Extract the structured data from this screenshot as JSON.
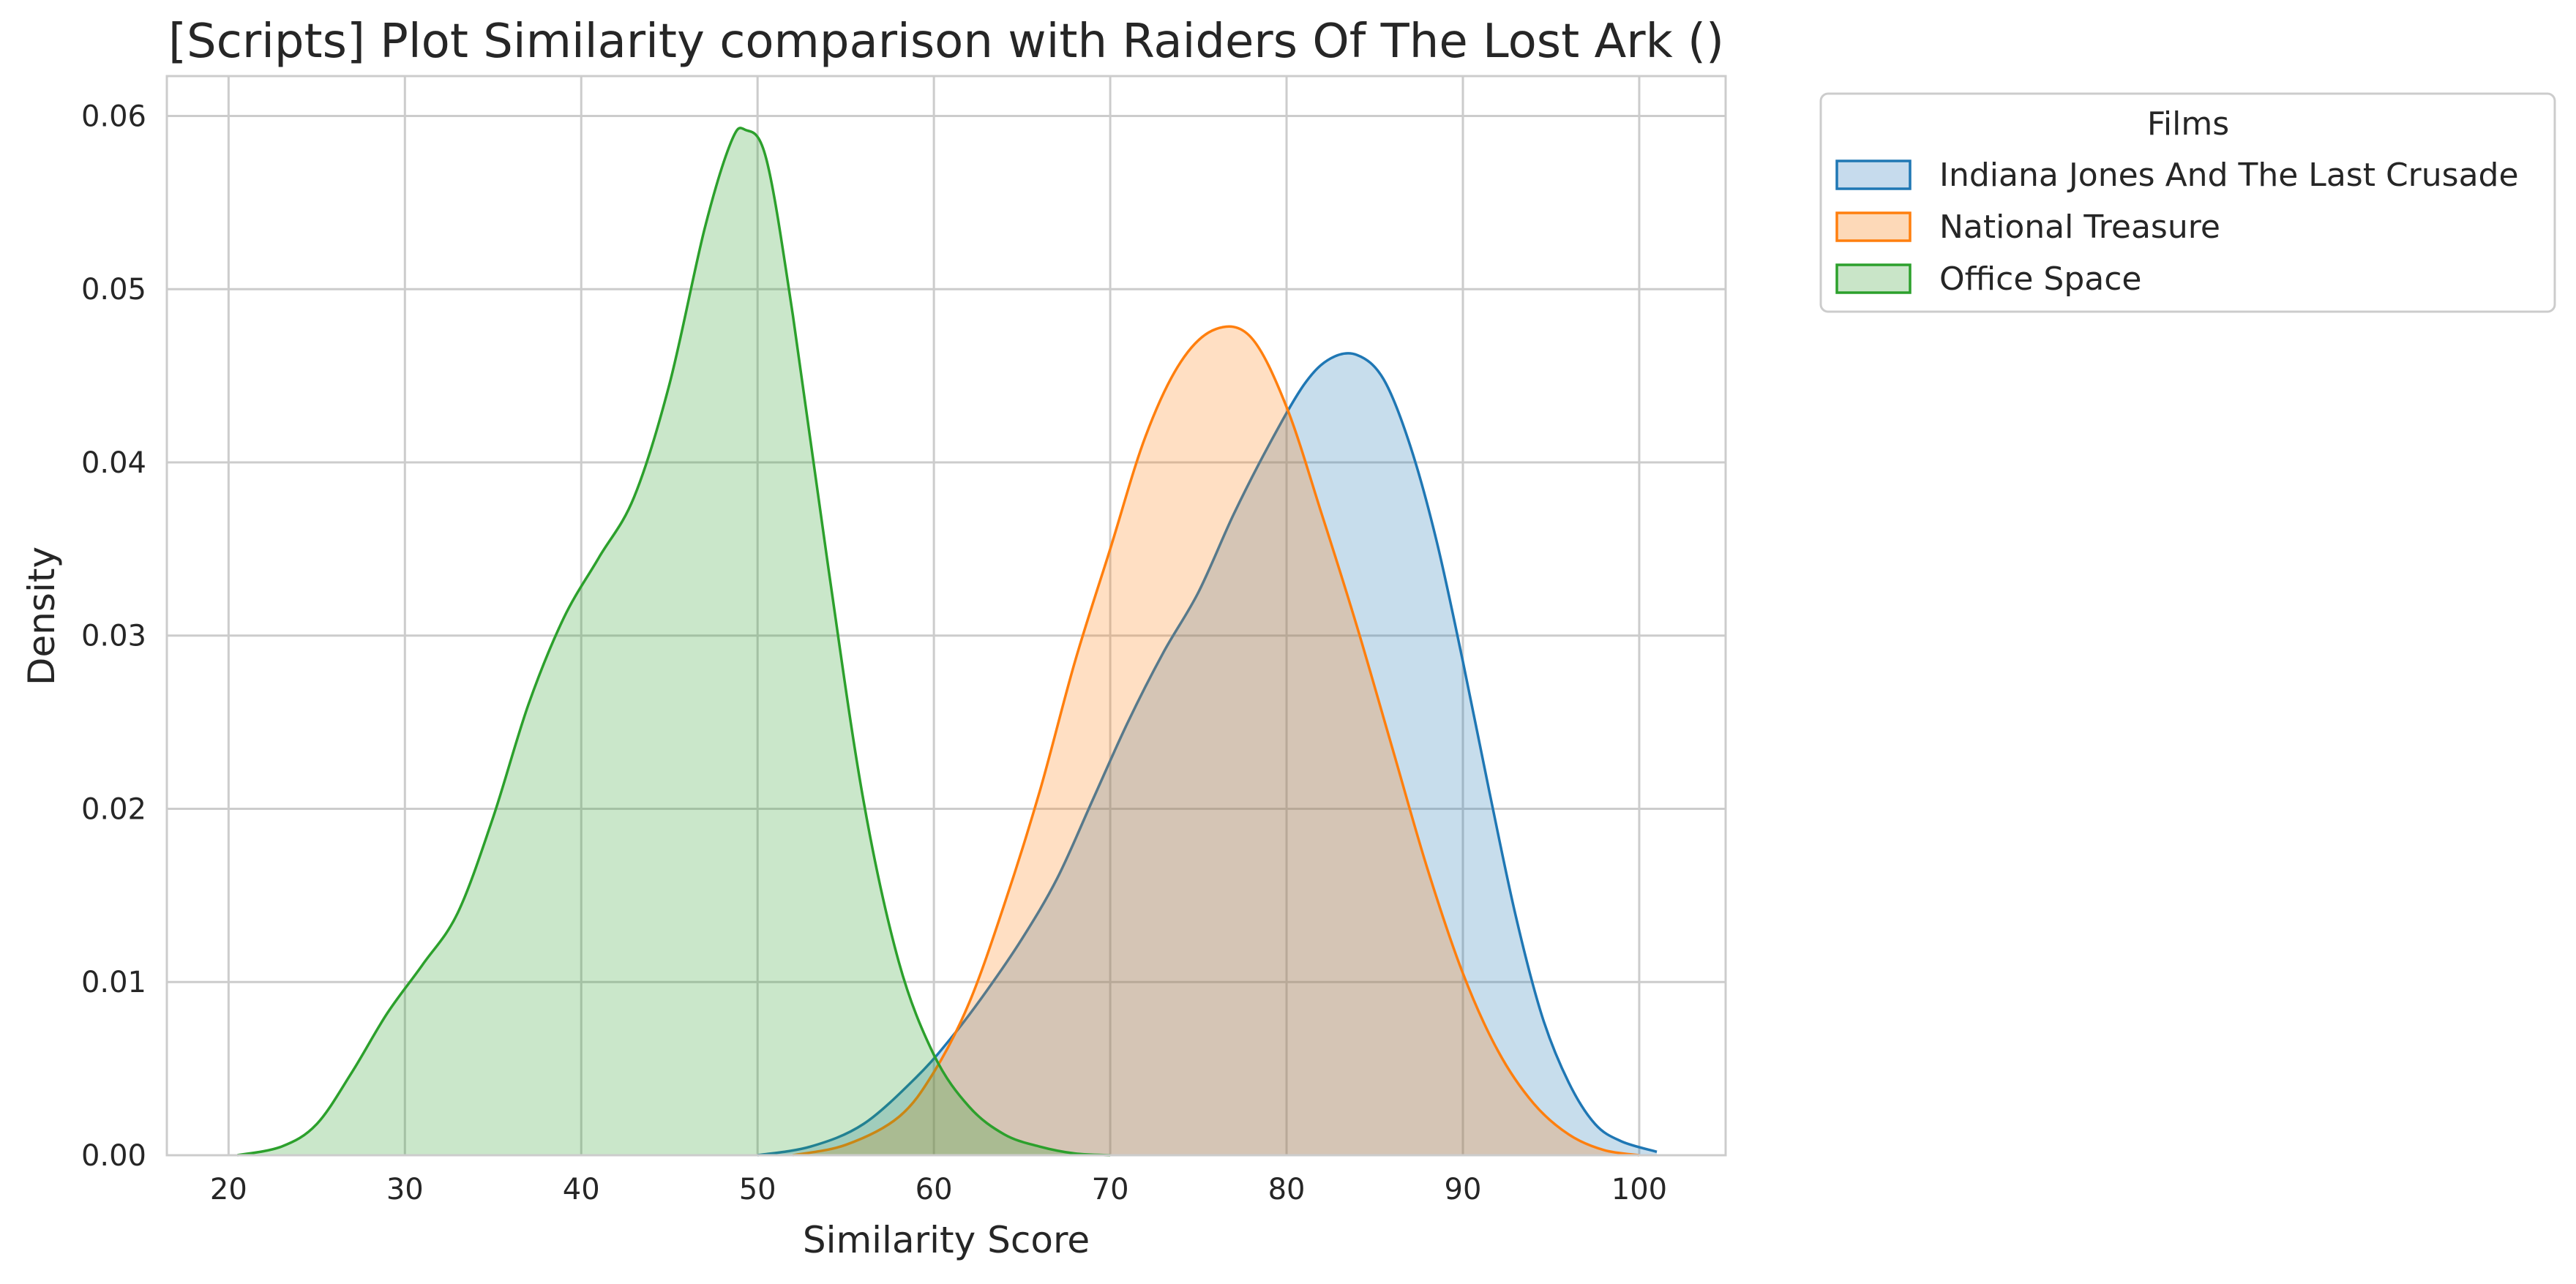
{
  "chart_data": {
    "type": "area",
    "title": "[Scripts] Plot Similarity comparison with Raiders Of The Lost Ark ()",
    "xlabel": "Similarity Score",
    "ylabel": "Density",
    "xlim": [
      16.5,
      104.9
    ],
    "ylim": [
      0,
      0.0623
    ],
    "x_ticks": [
      20,
      30,
      40,
      50,
      60,
      70,
      80,
      90,
      100
    ],
    "y_ticks": [
      0.0,
      0.01,
      0.02,
      0.03,
      0.04,
      0.05,
      0.06
    ],
    "x_tick_labels": [
      "20",
      "30",
      "40",
      "50",
      "60",
      "70",
      "80",
      "90",
      "100"
    ],
    "y_tick_labels": [
      "0.00",
      "0.01",
      "0.02",
      "0.03",
      "0.04",
      "0.05",
      "0.06"
    ],
    "grid": true,
    "legend": {
      "title": "Films",
      "placement": "outside-top-right"
    },
    "series": [
      {
        "name": "Indiana Jones And The Last Crusade",
        "color": "#1f77b4",
        "fill": "#c6dbed",
        "points": [
          [
            50,
            0
          ],
          [
            53,
            0.0005
          ],
          [
            56,
            0.0018
          ],
          [
            59,
            0.0045
          ],
          [
            61,
            0.0068
          ],
          [
            63,
            0.0095
          ],
          [
            65,
            0.0125
          ],
          [
            67,
            0.016
          ],
          [
            69,
            0.0205
          ],
          [
            71,
            0.025
          ],
          [
            73,
            0.029
          ],
          [
            75,
            0.0325
          ],
          [
            77,
            0.037
          ],
          [
            79,
            0.041
          ],
          [
            81,
            0.0445
          ],
          [
            82.5,
            0.046
          ],
          [
            84,
            0.0462
          ],
          [
            85.5,
            0.0448
          ],
          [
            87,
            0.041
          ],
          [
            88.5,
            0.0355
          ],
          [
            90,
            0.0285
          ],
          [
            91.5,
            0.021
          ],
          [
            93,
            0.0138
          ],
          [
            94.5,
            0.008
          ],
          [
            96,
            0.0042
          ],
          [
            97.5,
            0.0018
          ],
          [
            99,
            0.0008
          ],
          [
            101,
            0.0002
          ]
        ]
      },
      {
        "name": "National Treasure",
        "color": "#ff7f0e",
        "fill": "#fdd9b8",
        "points": [
          [
            52,
            0
          ],
          [
            55,
            0.0006
          ],
          [
            58,
            0.0022
          ],
          [
            60,
            0.0048
          ],
          [
            62,
            0.0088
          ],
          [
            64,
            0.0145
          ],
          [
            66,
            0.021
          ],
          [
            68,
            0.0285
          ],
          [
            70,
            0.035
          ],
          [
            72,
            0.0415
          ],
          [
            74,
            0.0458
          ],
          [
            76,
            0.0477
          ],
          [
            78,
            0.0472
          ],
          [
            80,
            0.0432
          ],
          [
            82,
            0.037
          ],
          [
            84,
            0.0305
          ],
          [
            86,
            0.0235
          ],
          [
            88,
            0.0165
          ],
          [
            90,
            0.0105
          ],
          [
            92,
            0.006
          ],
          [
            94,
            0.003
          ],
          [
            96,
            0.0012
          ],
          [
            98,
            0.0003
          ],
          [
            100,
            0
          ]
        ]
      },
      {
        "name": "Office Space",
        "color": "#2ca02c",
        "fill": "#c9e5c8",
        "points": [
          [
            20.5,
            0
          ],
          [
            23,
            0.0005
          ],
          [
            25,
            0.0018
          ],
          [
            27,
            0.0048
          ],
          [
            29,
            0.0082
          ],
          [
            31,
            0.011
          ],
          [
            33,
            0.014
          ],
          [
            35,
            0.0195
          ],
          [
            37,
            0.026
          ],
          [
            39,
            0.031
          ],
          [
            41,
            0.0345
          ],
          [
            43,
            0.038
          ],
          [
            45,
            0.0445
          ],
          [
            47,
            0.0535
          ],
          [
            48.5,
            0.0585
          ],
          [
            49.3,
            0.0592
          ],
          [
            50.5,
            0.0575
          ],
          [
            52,
            0.0485
          ],
          [
            54,
            0.034
          ],
          [
            56,
            0.0205
          ],
          [
            58,
            0.0112
          ],
          [
            60,
            0.0058
          ],
          [
            62,
            0.0028
          ],
          [
            64,
            0.0012
          ],
          [
            66,
            0.0005
          ],
          [
            68,
            0.0001
          ],
          [
            70,
            0
          ]
        ]
      }
    ]
  }
}
